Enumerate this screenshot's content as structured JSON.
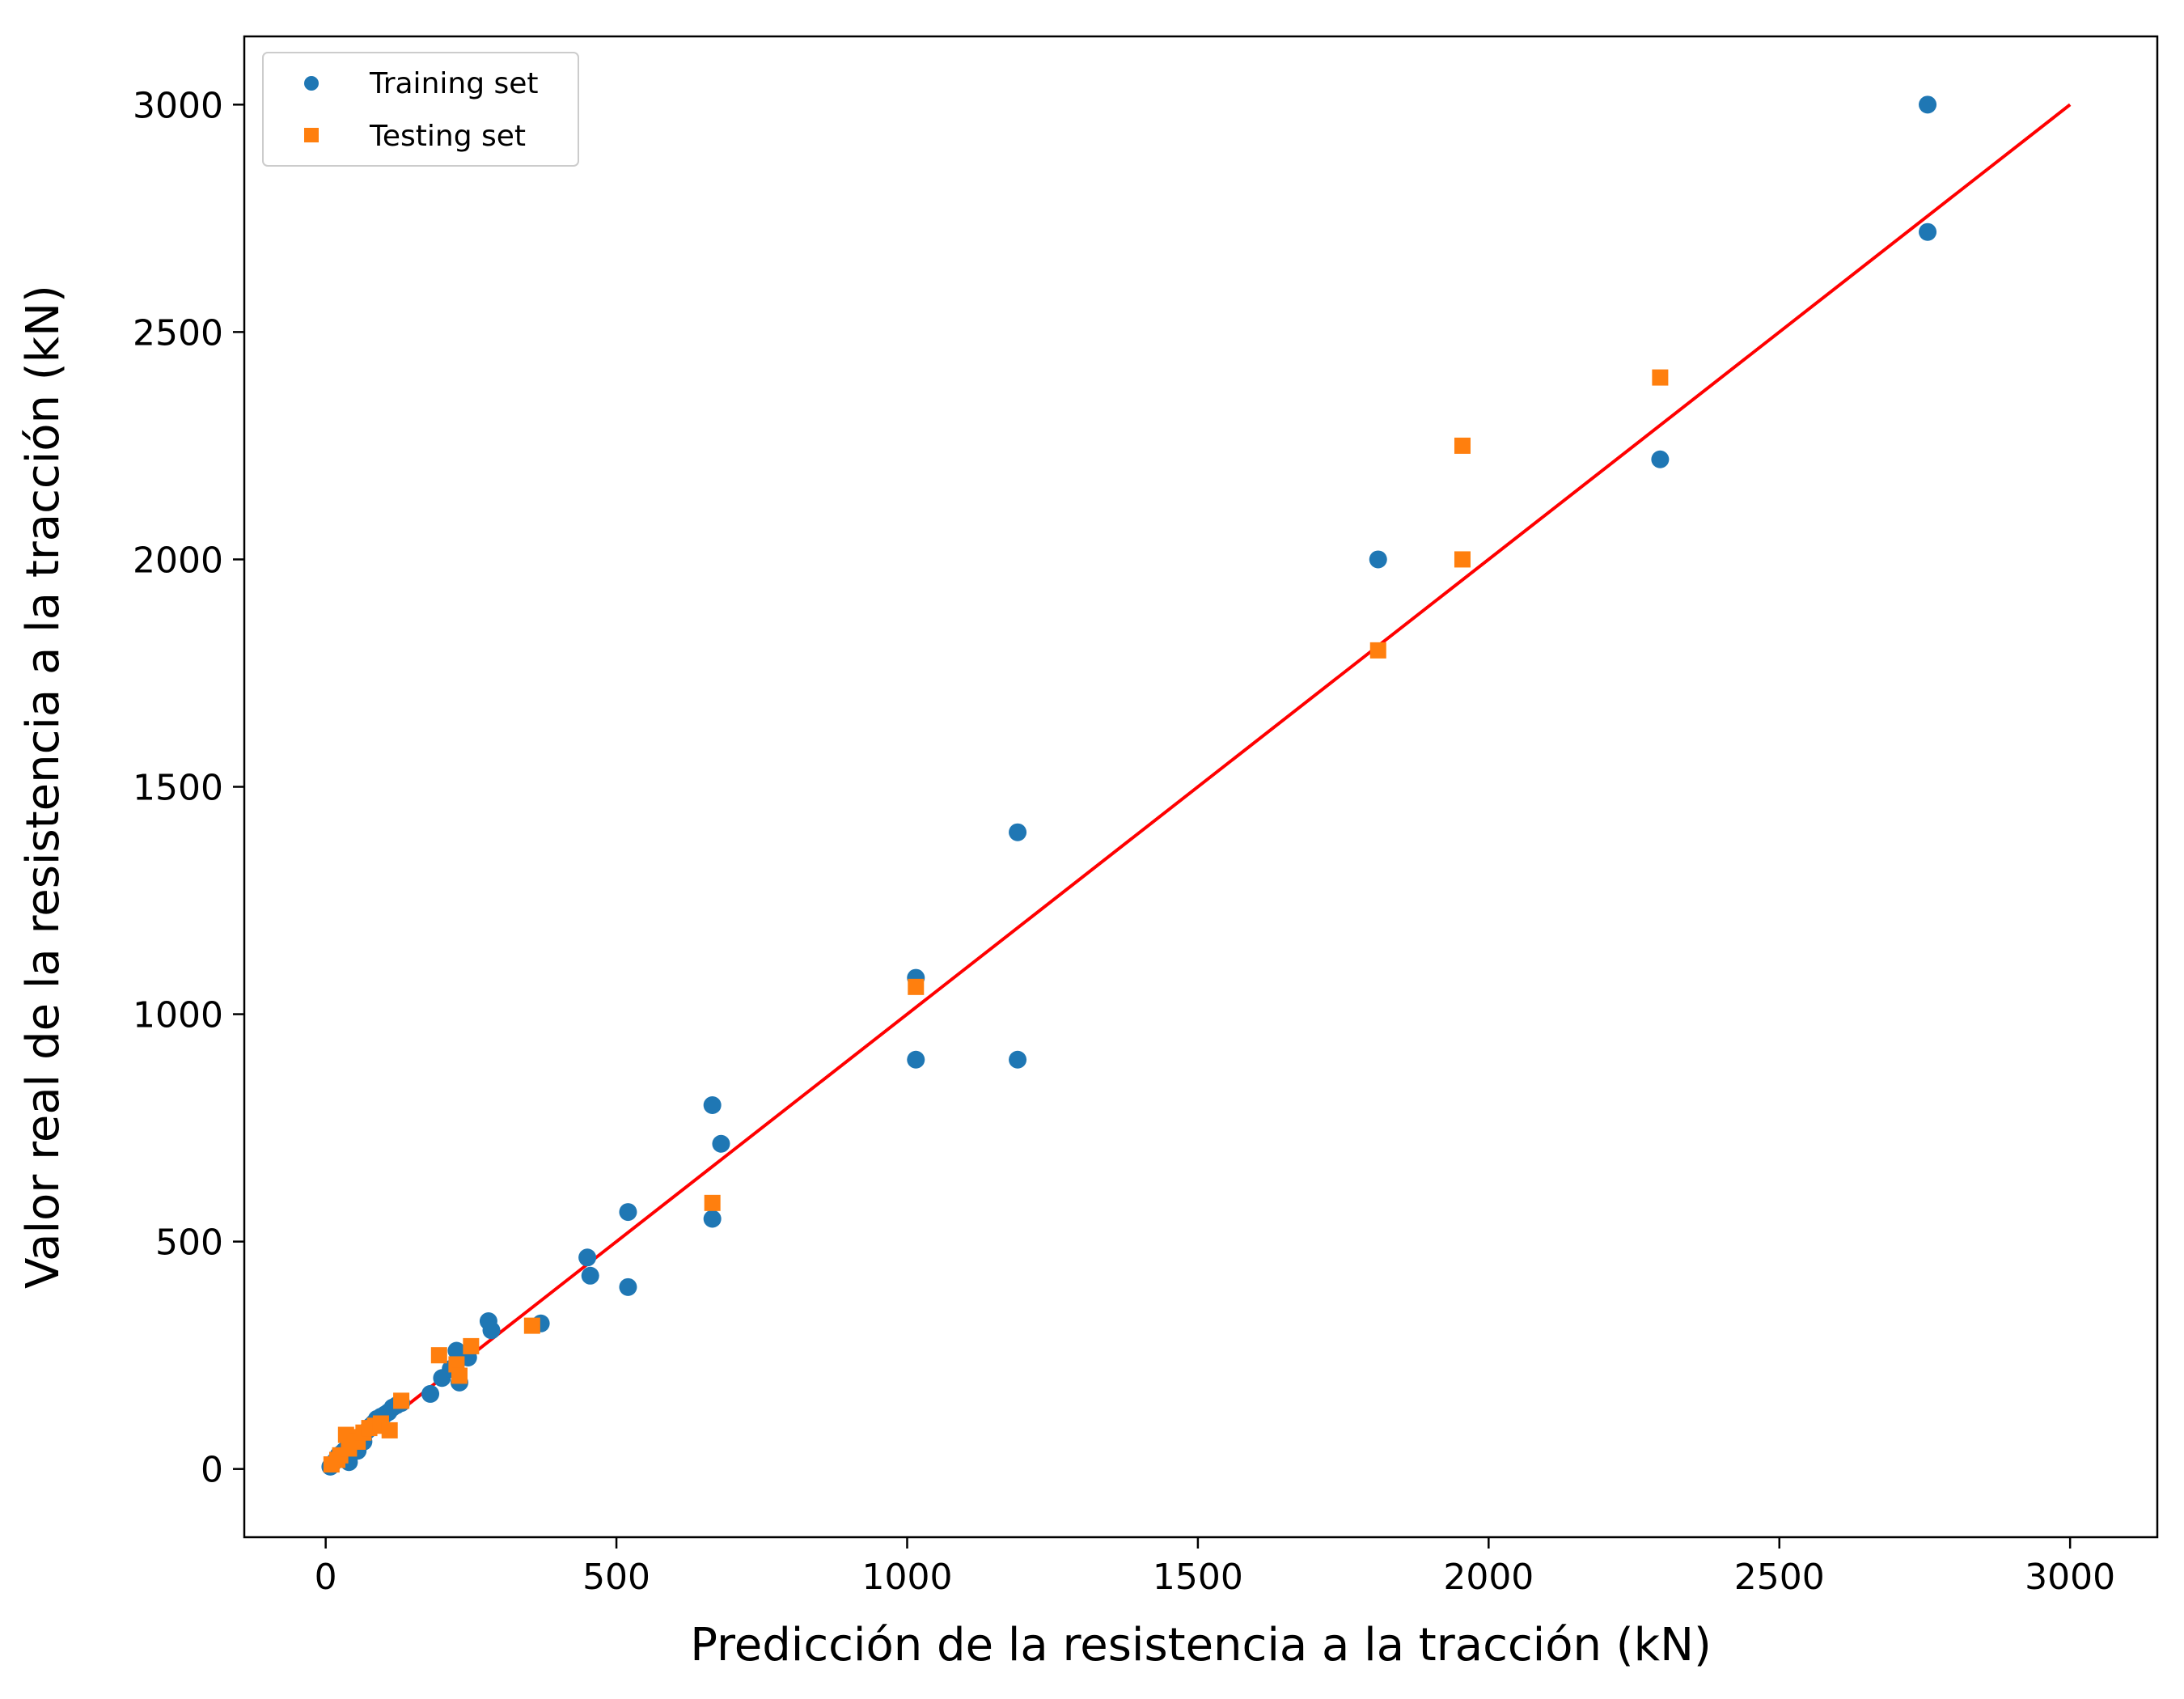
{
  "chart_data": {
    "type": "scatter",
    "xlabel": "Predicción de la resistencia a la tracción (kN)",
    "ylabel": "Valor real de la resistencia a la tracción (kN)",
    "xlim": [
      -140,
      3150
    ],
    "ylim": [
      -150,
      3150
    ],
    "xticks": [
      0,
      500,
      1000,
      1500,
      2000,
      2500,
      3000
    ],
    "yticks": [
      0,
      500,
      1000,
      1500,
      2000,
      2500,
      3000
    ],
    "grid": false,
    "legend_position": "top-left",
    "reference_line": {
      "x": [
        0,
        3000
      ],
      "y": [
        0,
        3000
      ],
      "color": "#ff0000"
    },
    "series": [
      {
        "name": "Training set",
        "marker": "circle",
        "color": "#1f77b4",
        "x": [
          8,
          12,
          18,
          22,
          28,
          32,
          38,
          42,
          48,
          52,
          58,
          62,
          68,
          72,
          78,
          82,
          88,
          95,
          102,
          108,
          115,
          122,
          130,
          40,
          55,
          65,
          180,
          200,
          215,
          225,
          230,
          245,
          280,
          285,
          370,
          450,
          455,
          520,
          520,
          665,
          665,
          680,
          1015,
          1015,
          1190,
          1190,
          1810,
          2295,
          2755,
          2755
        ],
        "y": [
          5,
          12,
          20,
          30,
          35,
          40,
          45,
          50,
          55,
          60,
          65,
          72,
          80,
          85,
          95,
          100,
          110,
          115,
          120,
          125,
          135,
          140,
          145,
          15,
          40,
          60,
          165,
          200,
          220,
          260,
          190,
          245,
          325,
          305,
          320,
          465,
          425,
          565,
          400,
          800,
          550,
          715,
          1080,
          900,
          1400,
          900,
          2000,
          2220,
          3000,
          2720
        ]
      },
      {
        "name": "Testing set",
        "marker": "square",
        "color": "#ff7f0e",
        "x": [
          10,
          20,
          25,
          35,
          40,
          50,
          55,
          65,
          75,
          85,
          95,
          110,
          130,
          195,
          225,
          230,
          250,
          355,
          665,
          1015,
          1810,
          1955,
          1955,
          2295
        ],
        "y": [
          10,
          20,
          30,
          75,
          45,
          70,
          60,
          80,
          90,
          95,
          100,
          85,
          150,
          250,
          230,
          205,
          270,
          315,
          585,
          1060,
          1800,
          2250,
          2000,
          2400
        ]
      }
    ]
  }
}
